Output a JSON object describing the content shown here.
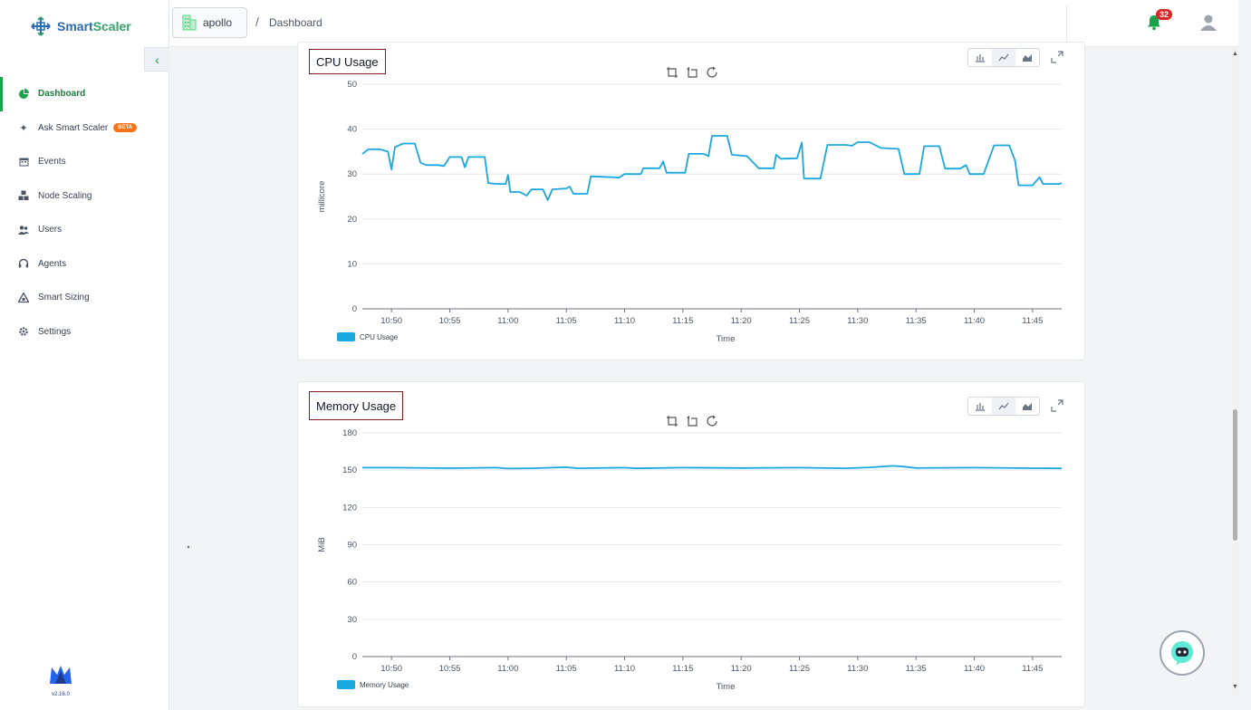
{
  "app": {
    "name_part1": "Smart",
    "name_part2": "Scaler",
    "version": "v2.16.0"
  },
  "header": {
    "cluster": "apollo",
    "breadcrumb_sep": "/",
    "page": "Dashboard",
    "notification_count": "32"
  },
  "sidebar": {
    "items": [
      {
        "label": "Dashboard",
        "icon": "dashboard-icon",
        "active": true
      },
      {
        "label": "Ask Smart Scaler",
        "icon": "sparkle-icon",
        "badge": "BETA"
      },
      {
        "label": "Events",
        "icon": "calendar-icon"
      },
      {
        "label": "Node Scaling",
        "icon": "nodes-icon"
      },
      {
        "label": "Users",
        "icon": "users-icon"
      },
      {
        "label": "Agents",
        "icon": "headset-icon"
      },
      {
        "label": "Smart Sizing",
        "icon": "sizing-icon"
      },
      {
        "label": "Settings",
        "icon": "gear-icon"
      }
    ]
  },
  "chart_data": [
    {
      "type": "line",
      "title": "CPU Usage",
      "xlabel": "Time",
      "ylabel": "millicore",
      "ylim": [
        0,
        50
      ],
      "yticks": [
        0,
        10,
        20,
        30,
        40,
        50
      ],
      "xticks": [
        "10:50",
        "10:55",
        "11:00",
        "11:05",
        "11:10",
        "11:15",
        "11:20",
        "11:25",
        "11:30",
        "11:35",
        "11:40",
        "11:45"
      ],
      "color": "#1aa7e0",
      "grid": true,
      "legend": "bottom-left",
      "series": [
        {
          "name": "CPU Usage",
          "points": [
            [
              "10:47.5",
              34.5
            ],
            [
              "10:48",
              35.5
            ],
            [
              "10:49",
              35.5
            ],
            [
              "10:49.7",
              35
            ],
            [
              "10:50",
              31
            ],
            [
              "10:50.3",
              36
            ],
            [
              "10:51",
              36.8
            ],
            [
              "10:52",
              36.8
            ],
            [
              "10:52.5",
              32.5
            ],
            [
              "10:53",
              32
            ],
            [
              "10:54",
              32
            ],
            [
              "10:54.5",
              31.8
            ],
            [
              "10:55",
              33.8
            ],
            [
              "10:56",
              33.8
            ],
            [
              "10:56.3",
              31.5
            ],
            [
              "10:56.6",
              33.8
            ],
            [
              "10:58",
              33.8
            ],
            [
              "10:58.3",
              28
            ],
            [
              "10:59",
              27.8
            ],
            [
              "10:59.8",
              27.8
            ],
            [
              "11:00",
              29.8
            ],
            [
              "11:00.2",
              26
            ],
            [
              "11:01",
              26
            ],
            [
              "11:01.6",
              25.2
            ],
            [
              "11:02",
              26.6
            ],
            [
              "11:03",
              26.6
            ],
            [
              "11:03.4",
              24.2
            ],
            [
              "11:03.8",
              26.6
            ],
            [
              "11:05",
              26.8
            ],
            [
              "11:05.3",
              27.2
            ],
            [
              "11:05.6",
              25.6
            ],
            [
              "11:06.8",
              25.6
            ],
            [
              "11:07.1",
              29.5
            ],
            [
              "11:09",
              29.3
            ],
            [
              "11:09.5",
              29.2
            ],
            [
              "11:10",
              30
            ],
            [
              "11:11.4",
              30
            ],
            [
              "11:11.6",
              31.3
            ],
            [
              "11:13",
              31.3
            ],
            [
              "11:13.3",
              32.8
            ],
            [
              "11:13.6",
              30.3
            ],
            [
              "11:15.2",
              30.3
            ],
            [
              "11:15.5",
              34.5
            ],
            [
              "11:16.8",
              34.5
            ],
            [
              "11:17.2",
              34
            ],
            [
              "11:17.5",
              38.5
            ],
            [
              "11:18.8",
              38.5
            ],
            [
              "11:19.2",
              34.3
            ],
            [
              "11:20.5",
              34
            ],
            [
              "11:21.5",
              31.3
            ],
            [
              "11:22.8",
              31.3
            ],
            [
              "11:23",
              34.3
            ],
            [
              "11:23.4",
              33.4
            ],
            [
              "11:24.8",
              33.5
            ],
            [
              "11:25.2",
              37
            ],
            [
              "11:25.4",
              29
            ],
            [
              "11:26.8",
              29
            ],
            [
              "11:27.4",
              36.5
            ],
            [
              "11:29",
              36.5
            ],
            [
              "11:29.5",
              36.3
            ],
            [
              "11:30",
              37.1
            ],
            [
              "11:31",
              37.1
            ],
            [
              "11:32",
              35.8
            ],
            [
              "11:33.5",
              35.6
            ],
            [
              "11:34",
              30
            ],
            [
              "11:35.3",
              30
            ],
            [
              "11:35.7",
              36.2
            ],
            [
              "11:37",
              36.2
            ],
            [
              "11:37.5",
              31.2
            ],
            [
              "11:38.8",
              31.2
            ],
            [
              "11:39.3",
              32
            ],
            [
              "11:39.6",
              30
            ],
            [
              "11:40.8",
              30
            ],
            [
              "11:41.7",
              36.4
            ],
            [
              "11:43",
              36.4
            ],
            [
              "11:43.5",
              33
            ],
            [
              "11:43.8",
              27.5
            ],
            [
              "11:45",
              27.5
            ],
            [
              "11:45.6",
              29.3
            ],
            [
              "11:45.9",
              27.8
            ],
            [
              "11:47.3",
              27.8
            ],
            [
              "11:47.5",
              28
            ]
          ]
        }
      ]
    },
    {
      "type": "line",
      "title": "Memory Usage",
      "xlabel": "Time",
      "ylabel": "MiB",
      "ylim": [
        0,
        180
      ],
      "yticks": [
        0,
        30,
        60,
        90,
        120,
        150,
        180
      ],
      "xticks": [
        "10:50",
        "10:55",
        "11:00",
        "11:05",
        "11:10",
        "11:15",
        "11:20",
        "11:25",
        "11:30",
        "11:35",
        "11:40",
        "11:45"
      ],
      "color": "#1aa7e0",
      "grid": true,
      "legend": "bottom-left",
      "series": [
        {
          "name": "Memory Usage",
          "points": [
            [
              "10:47.5",
              152
            ],
            [
              "10:50",
              152
            ],
            [
              "10:55",
              151.6
            ],
            [
              "10:59",
              152
            ],
            [
              "11:00",
              151.3
            ],
            [
              "11:02",
              151.5
            ],
            [
              "11:05",
              152.4
            ],
            [
              "11:06",
              151.5
            ],
            [
              "11:10",
              152
            ],
            [
              "11:11",
              151.4
            ],
            [
              "11:15",
              152
            ],
            [
              "11:20",
              151.7
            ],
            [
              "11:25",
              152
            ],
            [
              "11:29",
              151.5
            ],
            [
              "11:31",
              152.2
            ],
            [
              "11:33",
              153.5
            ],
            [
              "11:34",
              152.8
            ],
            [
              "11:35",
              151.7
            ],
            [
              "11:40",
              152
            ],
            [
              "11:45",
              151.6
            ],
            [
              "11:47.5",
              151.4
            ]
          ]
        }
      ]
    }
  ],
  "chatbot": {
    "icon": "bot-icon"
  }
}
